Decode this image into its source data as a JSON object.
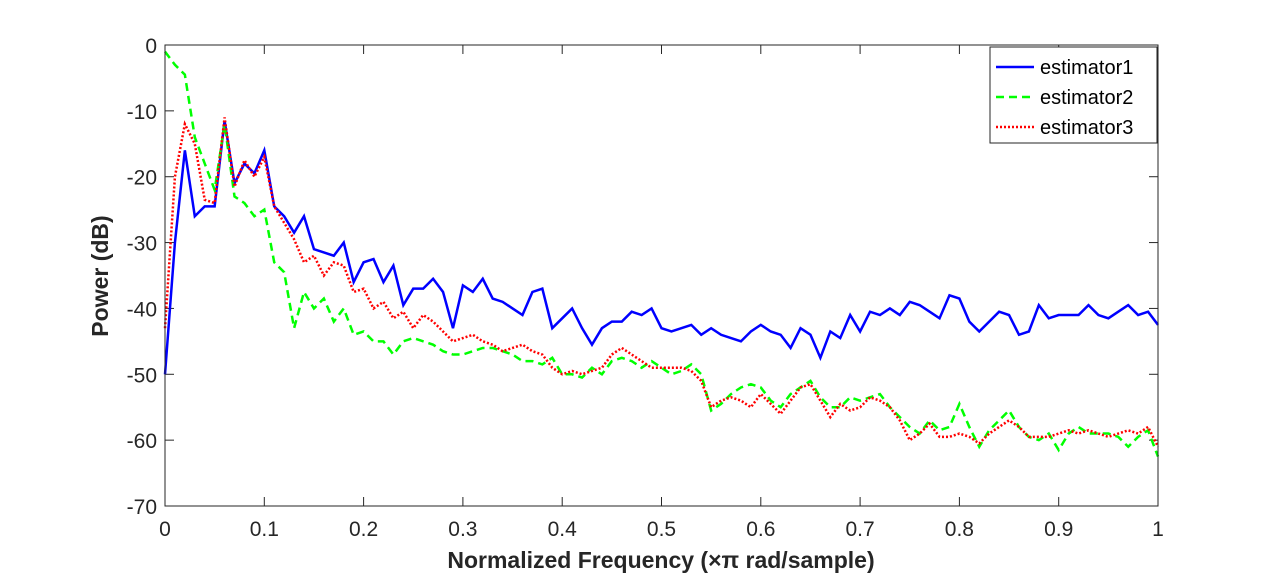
{
  "chart_data": {
    "type": "line",
    "xlabel": "Normalized Frequency  (×π rad/sample)",
    "ylabel": "Power (dB)",
    "x": [
      0,
      0.01,
      0.02,
      0.03,
      0.04,
      0.05,
      0.06,
      0.07,
      0.08,
      0.09,
      0.1,
      0.11,
      0.12,
      0.13,
      0.14,
      0.15,
      0.16,
      0.17,
      0.18,
      0.19,
      0.2,
      0.21,
      0.22,
      0.23,
      0.24,
      0.25,
      0.26,
      0.27,
      0.28,
      0.29,
      0.3,
      0.31,
      0.32,
      0.33,
      0.34,
      0.35,
      0.36,
      0.37,
      0.38,
      0.39,
      0.4,
      0.41,
      0.42,
      0.43,
      0.44,
      0.45,
      0.46,
      0.47,
      0.48,
      0.49,
      0.5,
      0.51,
      0.52,
      0.53,
      0.54,
      0.55,
      0.56,
      0.57,
      0.58,
      0.59,
      0.6,
      0.61,
      0.62,
      0.63,
      0.64,
      0.65,
      0.66,
      0.67,
      0.68,
      0.69,
      0.7,
      0.71,
      0.72,
      0.73,
      0.74,
      0.75,
      0.76,
      0.77,
      0.78,
      0.79,
      0.8,
      0.81,
      0.82,
      0.83,
      0.84,
      0.85,
      0.86,
      0.87,
      0.88,
      0.89,
      0.9,
      0.91,
      0.92,
      0.93,
      0.94,
      0.95,
      0.96,
      0.97,
      0.98,
      0.99,
      1
    ],
    "series": [
      {
        "name": "estimator1",
        "color": "#0000ff",
        "dash": "solid",
        "values": [
          -50,
          -30,
          -16,
          -26,
          -24.5,
          -24.5,
          -11.5,
          -21,
          -18,
          -19.5,
          -16,
          -24.5,
          -26,
          -28.5,
          -26,
          -31,
          -31.5,
          -32,
          -30,
          -36,
          -33,
          -32.5,
          -36,
          -33.5,
          -39.5,
          -37,
          -37,
          -35.5,
          -37.5,
          -43,
          -36.5,
          -37.5,
          -35.5,
          -38.5,
          -39,
          -40,
          -41,
          -37.5,
          -37,
          -43,
          -41.5,
          -40,
          -43,
          -45.5,
          -43,
          -42,
          -42,
          -40.5,
          -41,
          -40,
          -43,
          -43.5,
          -43,
          -42.5,
          -44,
          -43,
          -44,
          -44.5,
          -45,
          -43.5,
          -42.5,
          -43.5,
          -44,
          -46,
          -43,
          -44,
          -47.5,
          -43.5,
          -44.5,
          -41,
          -43.5,
          -40.5,
          -41,
          -40,
          -41,
          -39,
          -39.5,
          -40.5,
          -41.5,
          -38,
          -38.5,
          -42,
          -43.5,
          -42,
          -40.5,
          -41,
          -44,
          -43.5,
          -39.5,
          -41.5,
          -41,
          -41,
          -41,
          -39.5,
          -41,
          -41.5,
          -40.5,
          -39.5,
          -41,
          -40.5,
          -42.5
        ]
      },
      {
        "name": "estimator2",
        "color": "#00ff00",
        "dash": "dashed",
        "values": [
          -1,
          -3,
          -4.5,
          -14,
          -18,
          -22,
          -12,
          -23,
          -24,
          -26,
          -25,
          -33,
          -34.5,
          -43,
          -37.5,
          -40,
          -38.5,
          -42,
          -40,
          -44,
          -43.5,
          -45,
          -45,
          -47,
          -45,
          -44.5,
          -45,
          -45.5,
          -46.5,
          -47,
          -47,
          -46.5,
          -46,
          -46,
          -46.5,
          -47,
          -48,
          -48,
          -48.5,
          -47.5,
          -50,
          -50,
          -50.5,
          -49,
          -50,
          -48,
          -47.5,
          -48,
          -49,
          -48,
          -49,
          -50,
          -49.5,
          -48.5,
          -50,
          -55.5,
          -54.5,
          -53,
          -52,
          -51.5,
          -52,
          -54,
          -55,
          -53,
          -52,
          -51,
          -53.5,
          -55,
          -55,
          -53.5,
          -54,
          -53.5,
          -53,
          -55,
          -56.5,
          -58,
          -59,
          -57,
          -58.5,
          -58,
          -54.5,
          -58,
          -61,
          -58.5,
          -57,
          -55.5,
          -58,
          -59.5,
          -60,
          -59,
          -61.5,
          -59,
          -58,
          -59,
          -59,
          -59,
          -59.5,
          -61,
          -59.5,
          -58.5,
          -62.5
        ]
      },
      {
        "name": "estimator3",
        "color": "#ff0000",
        "dash": "dotted",
        "values": [
          -43,
          -20,
          -12,
          -15,
          -23.5,
          -24,
          -11,
          -21.5,
          -17.5,
          -20,
          -17,
          -24.5,
          -27,
          -29.5,
          -33,
          -32,
          -35,
          -33,
          -33.5,
          -37.5,
          -37,
          -40,
          -39,
          -41.5,
          -40.5,
          -43,
          -41,
          -42,
          -43.5,
          -45,
          -44.5,
          -44,
          -45,
          -45.5,
          -46.5,
          -46,
          -45.5,
          -46.5,
          -47,
          -49,
          -50,
          -49.5,
          -50,
          -49.5,
          -49,
          -47,
          -46,
          -47,
          -48,
          -49,
          -49,
          -49,
          -49,
          -49.5,
          -51,
          -55,
          -54,
          -53.5,
          -54,
          -55,
          -53,
          -54.5,
          -56,
          -54,
          -52,
          -51.5,
          -54,
          -56.5,
          -54.5,
          -55.5,
          -55,
          -53.5,
          -54,
          -55,
          -57,
          -60,
          -59,
          -57.5,
          -59.5,
          -59.5,
          -59,
          -59.5,
          -60.5,
          -59,
          -58,
          -57,
          -58,
          -59.5,
          -59.5,
          -59.5,
          -59,
          -58.5,
          -59,
          -58.5,
          -59,
          -59.5,
          -59,
          -58.5,
          -59,
          -58,
          -61
        ]
      }
    ],
    "xlim": [
      0,
      1
    ],
    "ylim": [
      -70,
      0
    ],
    "xticks": [
      0,
      0.1,
      0.2,
      0.3,
      0.4,
      0.5,
      0.6,
      0.7,
      0.8,
      0.9,
      1
    ],
    "yticks": [
      -70,
      -60,
      -50,
      -40,
      -30,
      -20,
      -10,
      0
    ],
    "grid": false,
    "legend": "upper right"
  }
}
